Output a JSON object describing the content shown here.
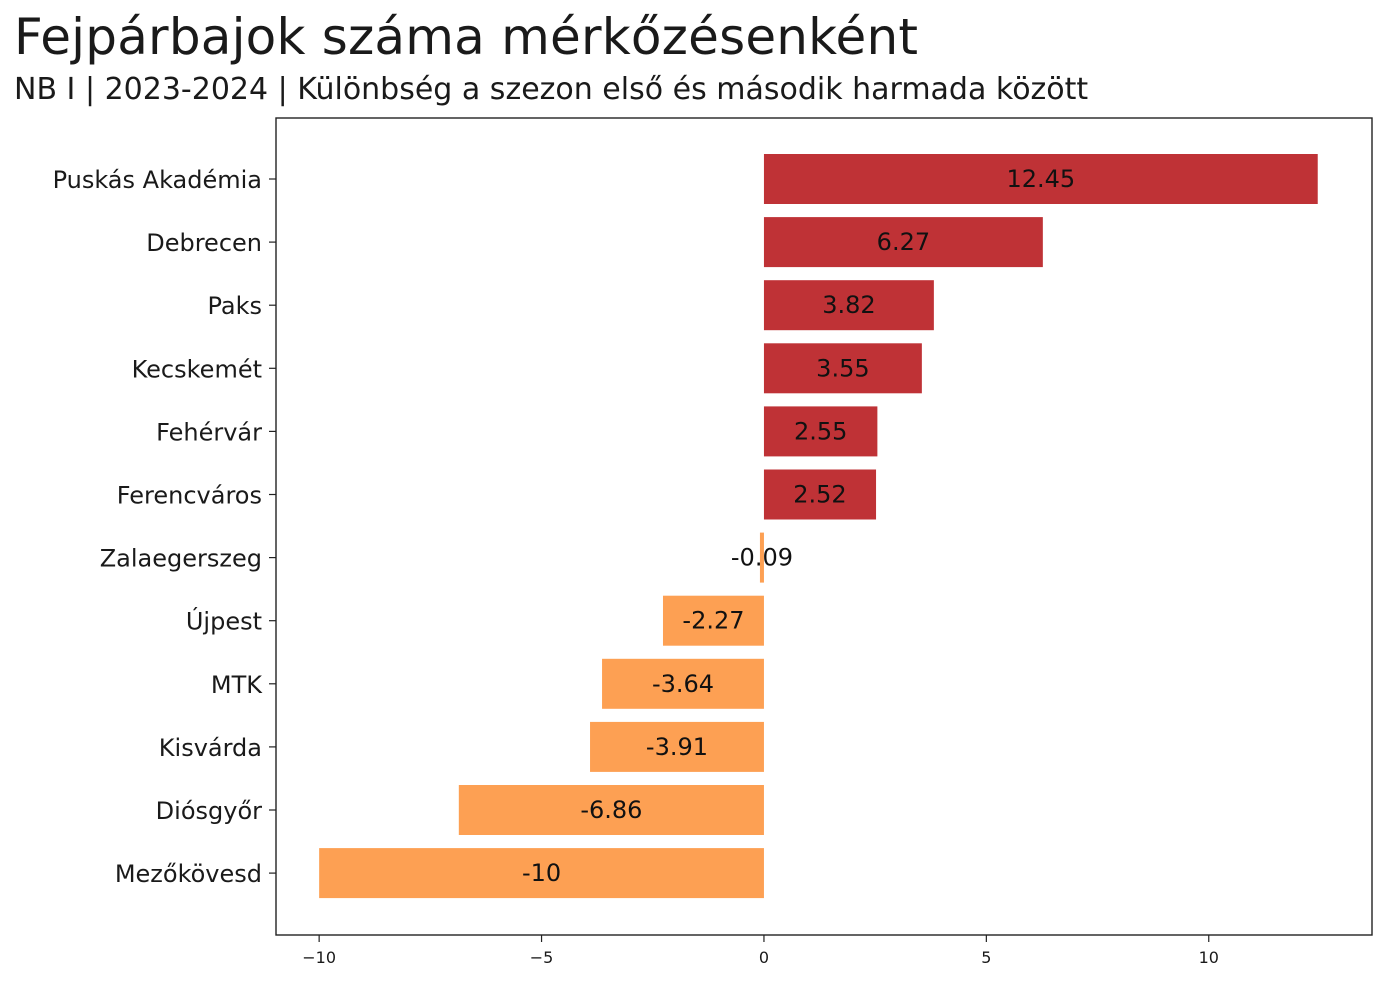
{
  "header": {
    "title": "Fejpárbajok száma mérkőzésenként",
    "subtitle": "NB I | 2023-2024 | Különbség a szezon első és második harmada között"
  },
  "colors": {
    "positive": "#bf3236",
    "negative": "#fda053",
    "axis": "#222222"
  },
  "chart_data": {
    "type": "bar",
    "orientation": "horizontal",
    "title": "Fejpárbajok száma mérkőzésenként",
    "subtitle": "NB I | 2023-2024 | Különbség a szezon első és második harmada között",
    "xlabel": "",
    "ylabel": "",
    "categories": [
      "Puskás Akadémia",
      "Debrecen",
      "Paks",
      "Kecskemét",
      "Fehérvár",
      "Ferencváros",
      "Zalaegerszeg",
      "Újpest",
      "MTK",
      "Kisvárda",
      "Diósgyőr",
      "Mezőkövesd"
    ],
    "values": [
      12.45,
      6.27,
      3.82,
      3.55,
      2.55,
      2.52,
      -0.09,
      -2.27,
      -3.64,
      -3.91,
      -6.86,
      -10
    ],
    "value_labels": [
      "12.45",
      "6.27",
      "3.82",
      "3.55",
      "2.55",
      "2.52",
      "-0.09",
      "-2.27",
      "-3.64",
      "-3.91",
      "-6.86",
      "-10"
    ],
    "xlim": [
      -10.97,
      13.67
    ],
    "xticks": [
      -10,
      -5,
      0,
      5,
      10
    ],
    "xtick_labels": [
      "−10",
      "−5",
      "0",
      "5",
      "10"
    ],
    "grid": false,
    "legend": "none"
  }
}
